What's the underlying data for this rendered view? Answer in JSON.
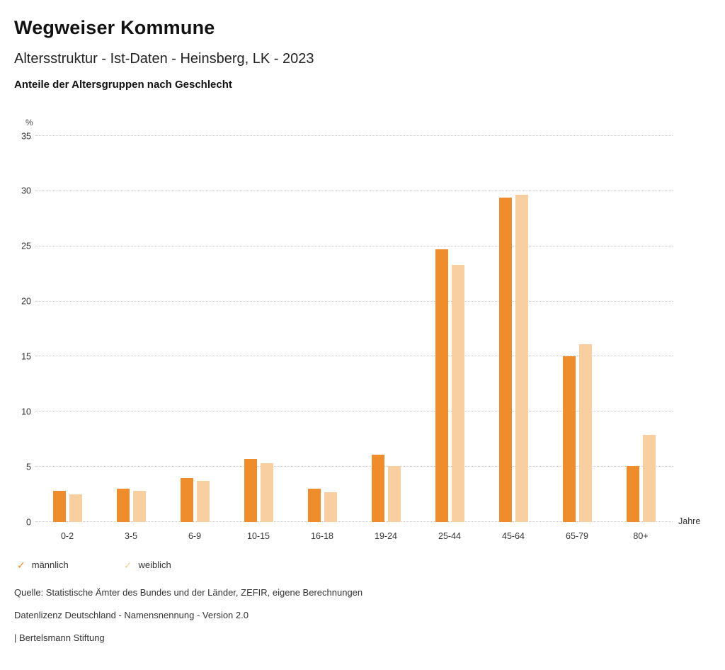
{
  "header": {
    "title": "Wegweiser Kommune",
    "subtitle": "Altersstruktur - Ist-Daten - Heinsberg, LK - 2023",
    "chart_heading": "Anteile der Altersgruppen nach Geschlecht"
  },
  "chart_data": {
    "type": "bar",
    "title": "Anteile der Altersgruppen nach Geschlecht",
    "unit_label": "%",
    "x_unit_label": "Jahre",
    "categories": [
      "0-2",
      "3-5",
      "6-9",
      "10-15",
      "16-18",
      "19-24",
      "25-44",
      "45-64",
      "65-79",
      "80+"
    ],
    "series": [
      {
        "name": "männlich",
        "color": "#EF8C2B",
        "values": [
          2.8,
          3.0,
          4.0,
          5.7,
          3.0,
          6.1,
          24.7,
          29.4,
          15.0,
          5.1
        ]
      },
      {
        "name": "weiblich",
        "color": "#F8CFA0",
        "values": [
          2.5,
          2.8,
          3.7,
          5.3,
          2.7,
          5.1,
          23.3,
          29.7,
          16.1,
          7.9
        ]
      }
    ],
    "ylim": [
      0,
      35
    ],
    "yticks": [
      0,
      5,
      10,
      15,
      20,
      25,
      30,
      35
    ],
    "grid": "dotted horizontal",
    "legend_position": "bottom-left"
  },
  "legend": {
    "items": [
      {
        "label": "männlich",
        "color": "#EF8C2B",
        "checked": true
      },
      {
        "label": "weiblich",
        "color": "#F8CFA0",
        "checked": true
      }
    ]
  },
  "footer": {
    "source": "Quelle: Statistische Ämter des Bundes und der Länder, ZEFIR, eigene Berechnungen",
    "license": "Datenlizenz Deutschland - Namensnennung - Version 2.0",
    "attribution": "| Bertelsmann Stiftung"
  }
}
